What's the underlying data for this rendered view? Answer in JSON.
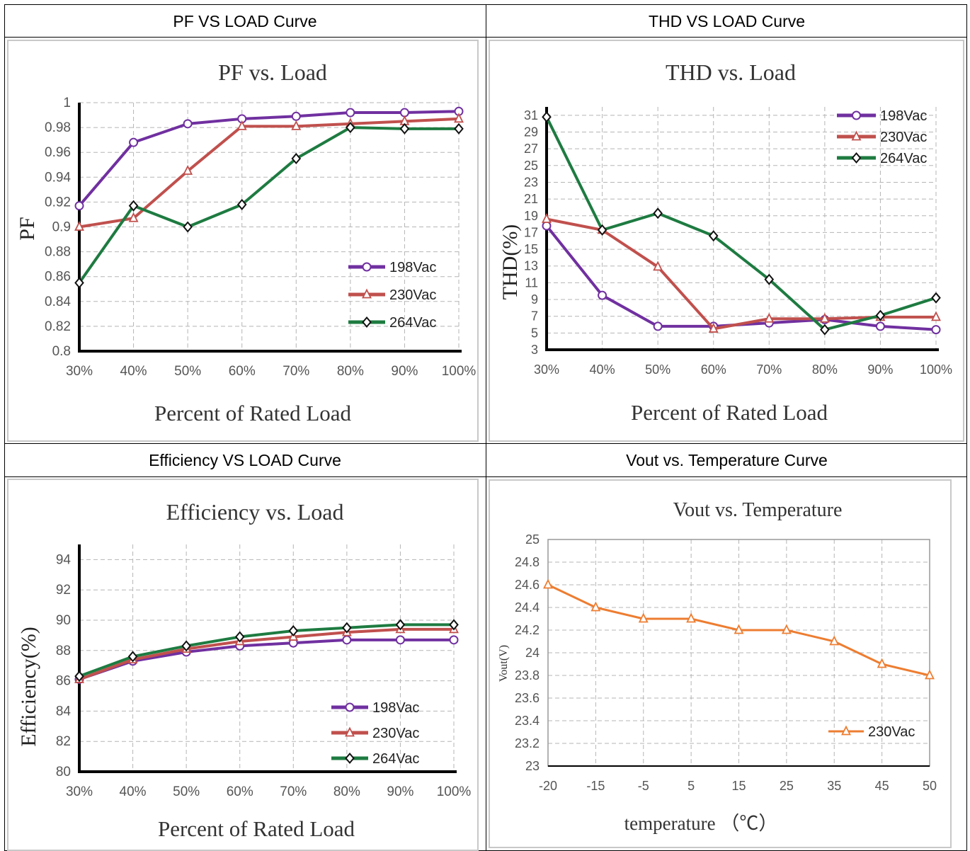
{
  "headers": {
    "pf": "PF VS LOAD Curve",
    "thd": "THD VS LOAD Curve",
    "eff": "Efficiency VS LOAD Curve",
    "vout": "Vout vs. Temperature Curve"
  },
  "colors": {
    "purple": "#7030a0",
    "red": "#c0504d",
    "green": "#1e7b41",
    "orange": "#ed7d31"
  },
  "chart_data": [
    {
      "id": "pf",
      "type": "line",
      "title": "PF vs. Load",
      "xlabel": "Percent of Rated Load",
      "ylabel": "PF",
      "categories": [
        "30%",
        "40%",
        "50%",
        "60%",
        "70%",
        "80%",
        "90%",
        "100%"
      ],
      "yticks": [
        "0.8",
        "0.82",
        "0.84",
        "0.86",
        "0.88",
        "0.9",
        "0.92",
        "0.94",
        "0.96",
        "0.98",
        "1"
      ],
      "ylim": [
        0.8,
        1.0
      ],
      "legend_position": "bottom-right",
      "series": [
        {
          "name": "198Vac",
          "color": "#7030a0",
          "marker": "circle",
          "values": [
            0.917,
            0.968,
            0.983,
            0.987,
            0.989,
            0.992,
            0.992,
            0.993
          ]
        },
        {
          "name": "230Vac",
          "color": "#c0504d",
          "marker": "triangle",
          "values": [
            0.9,
            0.907,
            0.945,
            0.981,
            0.981,
            0.983,
            0.985,
            0.987
          ]
        },
        {
          "name": "264Vac",
          "color": "#1e7b41",
          "marker": "diamond",
          "values": [
            0.855,
            0.917,
            0.9,
            0.918,
            0.955,
            0.98,
            0.979,
            0.979
          ]
        }
      ]
    },
    {
      "id": "thd",
      "type": "line",
      "title": "THD vs. Load",
      "xlabel": "Percent of Rated Load",
      "ylabel": "THD(%)",
      "categories": [
        "30%",
        "40%",
        "50%",
        "60%",
        "70%",
        "80%",
        "90%",
        "100%"
      ],
      "yticks": [
        "3",
        "5",
        "7",
        "9",
        "11",
        "13",
        "15",
        "17",
        "19",
        "21",
        "23",
        "25",
        "27",
        "29",
        "31"
      ],
      "ylim": [
        3,
        31
      ],
      "legend_position": "top-right",
      "series": [
        {
          "name": "198Vac",
          "color": "#7030a0",
          "marker": "circle",
          "values": [
            17.8,
            9.5,
            5.8,
            5.8,
            6.2,
            6.6,
            5.8,
            5.4
          ]
        },
        {
          "name": "230Vac",
          "color": "#c0504d",
          "marker": "triangle",
          "values": [
            18.6,
            17.3,
            12.9,
            5.5,
            6.7,
            6.7,
            6.9,
            6.9
          ]
        },
        {
          "name": "264Vac",
          "color": "#1e7b41",
          "marker": "diamond",
          "values": [
            30.8,
            17.3,
            19.3,
            16.6,
            11.4,
            5.4,
            7.1,
            9.2
          ]
        }
      ]
    },
    {
      "id": "eff",
      "type": "line",
      "title": "Efficiency vs. Load",
      "xlabel": "Percent of Rated Load",
      "ylabel": "Efficiency(%)",
      "categories": [
        "30%",
        "40%",
        "50%",
        "60%",
        "70%",
        "80%",
        "90%",
        "100%"
      ],
      "yticks": [
        "80",
        "82",
        "84",
        "86",
        "88",
        "90",
        "92",
        "94"
      ],
      "ylim": [
        80,
        95
      ],
      "legend_position": "bottom-right",
      "series": [
        {
          "name": "198Vac",
          "color": "#7030a0",
          "marker": "circle",
          "values": [
            86.1,
            87.3,
            87.9,
            88.3,
            88.5,
            88.7,
            88.7,
            88.7
          ]
        },
        {
          "name": "230Vac",
          "color": "#c0504d",
          "marker": "triangle",
          "values": [
            86.1,
            87.4,
            88.1,
            88.6,
            88.9,
            89.2,
            89.4,
            89.4
          ]
        },
        {
          "name": "264Vac",
          "color": "#1e7b41",
          "marker": "diamond",
          "values": [
            86.3,
            87.6,
            88.3,
            88.9,
            89.3,
            89.5,
            89.7,
            89.7
          ]
        }
      ]
    },
    {
      "id": "vout",
      "type": "line",
      "title": "Vout vs. Temperature",
      "xlabel": "temperature （℃）",
      "ylabel": "Vout(V)",
      "categories": [
        "-20",
        "-15",
        "-5",
        "5",
        "15",
        "25",
        "35",
        "45",
        "50"
      ],
      "yticks": [
        "23",
        "23.2",
        "23.4",
        "23.6",
        "23.8",
        "24",
        "24.2",
        "24.4",
        "24.6",
        "24.8",
        "25"
      ],
      "ylim": [
        23,
        25
      ],
      "legend_position": "bottom-right",
      "series": [
        {
          "name": "230Vac",
          "color": "#ed7d31",
          "marker": "triangle",
          "values": [
            24.6,
            24.4,
            24.3,
            24.3,
            24.2,
            24.2,
            24.1,
            23.9,
            23.8
          ]
        }
      ]
    }
  ]
}
